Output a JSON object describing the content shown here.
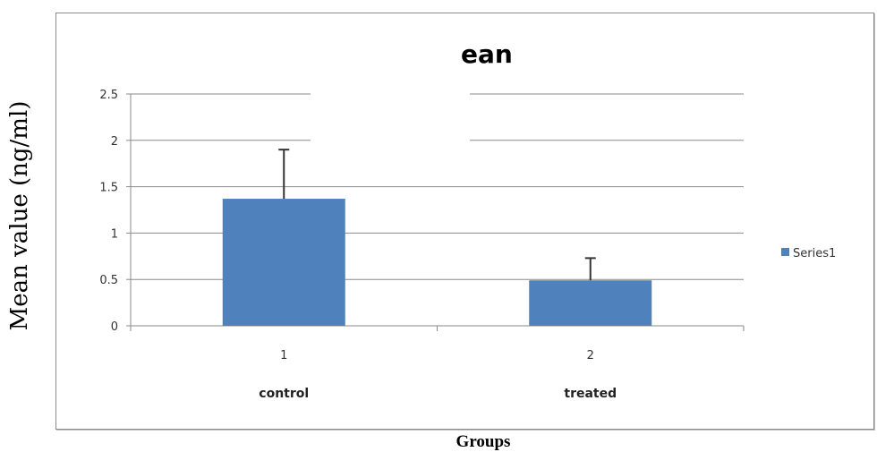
{
  "chart_data": {
    "type": "bar",
    "title": "ean",
    "ylabel": "Mean value (ng/ml)",
    "xlabel": "Groups",
    "categories": [
      "1",
      "2"
    ],
    "category_labels": [
      "control",
      "treated"
    ],
    "series": [
      {
        "name": "Series1",
        "values": [
          1.37,
          0.49
        ],
        "errors": [
          0.53,
          0.24
        ],
        "color": "#4f81bd"
      }
    ],
    "ylim": [
      0,
      2.5
    ],
    "yticks": [
      "0",
      "0.5",
      "1",
      "1.5",
      "2",
      "2.5"
    ],
    "grid": true,
    "legend": "right"
  }
}
